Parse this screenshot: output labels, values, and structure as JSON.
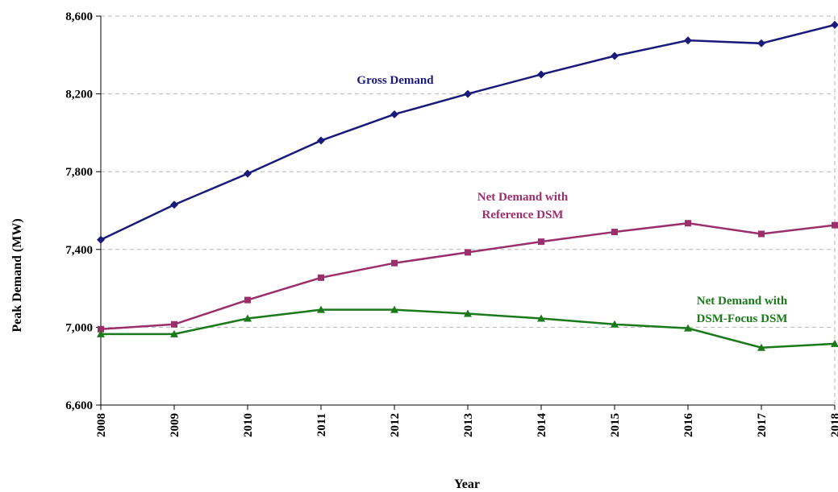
{
  "chart_data": {
    "type": "line",
    "xlabel": "Year",
    "ylabel": "Peak Demand (MW)",
    "x": [
      "2008",
      "2009",
      "2010",
      "2011",
      "2012",
      "2013",
      "2014",
      "2015",
      "2016",
      "2017",
      "2018"
    ],
    "ylim": [
      6600,
      8600
    ],
    "yticks": [
      "6,600",
      "7,000",
      "7,400",
      "7,800",
      "8,200",
      "8,600"
    ],
    "grid": true,
    "series": [
      {
        "name": "Gross Demand",
        "color": "#1a1a7a",
        "marker": "diamond",
        "values": [
          7450,
          7630,
          7790,
          7960,
          8095,
          8200,
          8300,
          8395,
          8475,
          8460,
          8555
        ]
      },
      {
        "name": "Net Demand with Reference DSM",
        "label_lines": [
          "Net Demand with",
          "Reference DSM"
        ],
        "color": "#9b2f6b",
        "marker": "square",
        "values": [
          6990,
          7015,
          7140,
          7255,
          7330,
          7385,
          7440,
          7490,
          7535,
          7480,
          7525
        ]
      },
      {
        "name": "Net Demand with DSM-Focus DSM",
        "label_lines": [
          "Net Demand with",
          "DSM-Focus DSM"
        ],
        "color": "#1a7a1a",
        "marker": "triangle",
        "values": [
          6965,
          6965,
          7045,
          7090,
          7090,
          7070,
          7045,
          7015,
          6995,
          6895,
          6915
        ]
      }
    ]
  }
}
